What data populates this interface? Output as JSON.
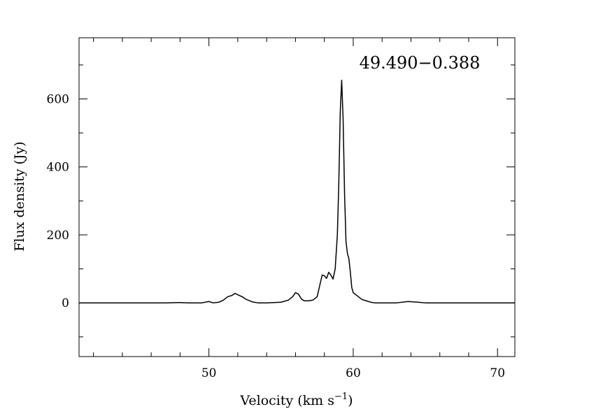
{
  "chart_data": {
    "type": "line",
    "title": "",
    "annotation": "49.490−0.388",
    "xlabel": "Velocity (km s",
    "xlabel_exponent": "−1",
    "xlabel_suffix": ")",
    "ylabel": "Flux density (Jy)",
    "xlim": [
      41.0,
      71.2
    ],
    "ylim": [
      -158,
      780
    ],
    "x_ticks": [
      50,
      60,
      70
    ],
    "x_tick_labels": [
      "50",
      "60",
      "70"
    ],
    "y_ticks": [
      0,
      200,
      400,
      600
    ],
    "y_tick_labels": [
      "0",
      "200",
      "400",
      "600"
    ],
    "grid": false,
    "legend": "none",
    "line_color": "#000000",
    "series": [
      {
        "x": [
          41.0,
          44.0,
          47.0,
          48.0,
          48.6,
          49.5,
          50.0,
          50.3,
          50.7,
          51.0,
          51.3,
          51.6,
          51.8,
          52.0,
          52.3,
          52.6,
          53.0,
          53.4,
          54.0,
          55.0,
          55.5,
          55.8,
          56.0,
          56.2,
          56.4,
          56.6,
          56.9,
          57.2,
          57.5,
          57.7,
          57.85,
          58.0,
          58.15,
          58.3,
          58.45,
          58.6,
          58.75,
          58.9,
          59.0,
          59.1,
          59.2,
          59.3,
          59.4,
          59.5,
          59.6,
          59.7,
          59.8,
          59.9,
          60.0,
          60.15,
          60.3,
          60.6,
          60.9,
          61.2,
          61.5,
          62.0,
          63.0,
          63.8,
          64.5,
          65.0,
          66.0,
          67.0,
          68.0,
          69.0,
          70.0,
          71.2
        ],
        "y": [
          0,
          0,
          0,
          1,
          0,
          0,
          4,
          0,
          2,
          8,
          18,
          22,
          28,
          24,
          18,
          10,
          3,
          0,
          0,
          2,
          8,
          18,
          30,
          26,
          12,
          6,
          6,
          8,
          18,
          55,
          82,
          80,
          72,
          90,
          82,
          70,
          100,
          200,
          350,
          560,
          655,
          540,
          320,
          180,
          145,
          130,
          90,
          45,
          30,
          25,
          20,
          10,
          6,
          2,
          0,
          0,
          0,
          4,
          2,
          0,
          0,
          0,
          0,
          0,
          0,
          0
        ]
      }
    ]
  }
}
